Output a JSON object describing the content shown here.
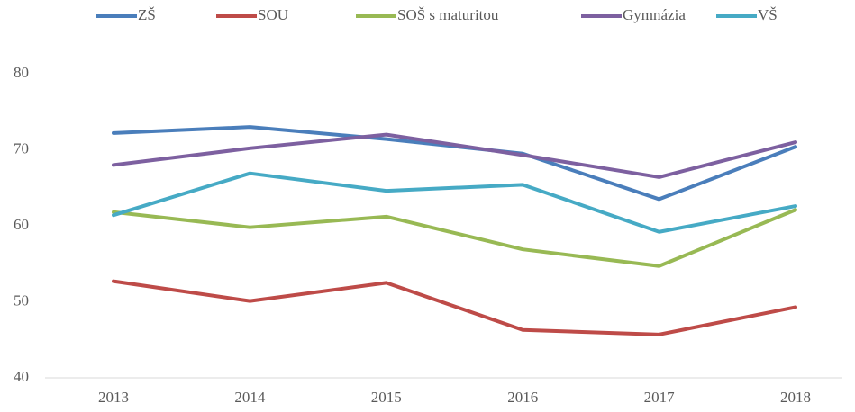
{
  "chart_data": {
    "type": "line",
    "categories": [
      "2013",
      "2014",
      "2015",
      "2016",
      "2017",
      "2018"
    ],
    "series": [
      {
        "name": "ZŠ",
        "color": "#4a7ebb",
        "values": [
          72.2,
          73.0,
          71.4,
          69.5,
          63.5,
          70.4
        ]
      },
      {
        "name": "SOU",
        "color": "#be4b48",
        "values": [
          52.7,
          50.1,
          52.5,
          46.3,
          45.7,
          49.3
        ]
      },
      {
        "name": "SOŠ s maturitou",
        "color": "#98b954",
        "values": [
          61.8,
          59.8,
          61.2,
          56.9,
          54.7,
          62.1
        ]
      },
      {
        "name": "Gymnázia",
        "color": "#7d60a0",
        "values": [
          68.0,
          70.2,
          72.0,
          69.3,
          66.4,
          71.0
        ]
      },
      {
        "name": "VŠ",
        "color": "#46aac5",
        "values": [
          61.4,
          66.9,
          64.6,
          65.4,
          59.2,
          62.6
        ]
      }
    ],
    "ylim": [
      40,
      80
    ],
    "yticks": [
      40,
      50,
      60,
      70,
      80
    ],
    "grid": false,
    "legend": "top"
  }
}
